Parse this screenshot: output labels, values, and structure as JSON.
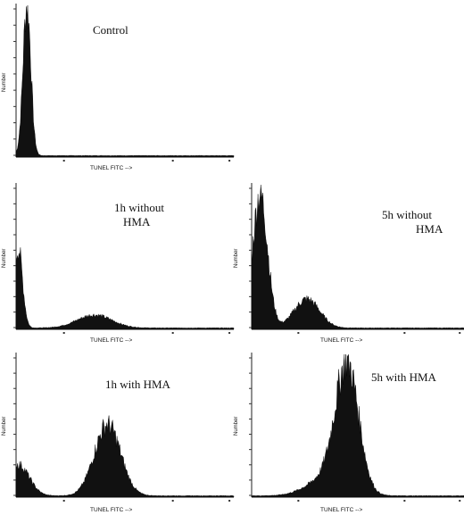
{
  "chart_data": [
    {
      "type": "area",
      "panel": "control",
      "annotation": [
        "Control"
      ],
      "xlabel": "TUNEL FITC -->",
      "ylabel": "Number",
      "peaks": [
        {
          "center": 0.05,
          "width": 0.018,
          "height": 1.0
        }
      ]
    },
    {
      "type": "area",
      "panel": "1h-without-hma",
      "annotation": [
        "1h without",
        "HMA"
      ],
      "xlabel": "TUNEL FITC -->",
      "ylabel": "Number",
      "peaks": [
        {
          "center": 0.01,
          "width": 0.02,
          "height": 0.55
        },
        {
          "center": 0.36,
          "width": 0.08,
          "height": 0.09
        }
      ]
    },
    {
      "type": "area",
      "panel": "5h-without-hma",
      "annotation": [
        "5h without",
        "HMA"
      ],
      "xlabel": "TUNEL FITC -->",
      "ylabel": "Number",
      "peaks": [
        {
          "center": 0.04,
          "width": 0.035,
          "height": 0.93
        },
        {
          "center": 0.26,
          "width": 0.06,
          "height": 0.2
        }
      ]
    },
    {
      "type": "area",
      "panel": "1h-with-hma",
      "annotation": [
        "1h with HMA"
      ],
      "xlabel": "TUNEL FITC -->",
      "ylabel": "Number",
      "peaks": [
        {
          "center": 0.01,
          "width": 0.05,
          "height": 0.22
        },
        {
          "center": 0.42,
          "width": 0.06,
          "height": 0.5
        }
      ]
    },
    {
      "type": "area",
      "panel": "5h-with-hma",
      "annotation": [
        "5h with HMA"
      ],
      "xlabel": "TUNEL FITC -->",
      "ylabel": "Number",
      "peaks": [
        {
          "center": 0.45,
          "width": 0.055,
          "height": 0.88
        },
        {
          "center": 0.35,
          "width": 0.09,
          "height": 0.12
        }
      ]
    }
  ]
}
